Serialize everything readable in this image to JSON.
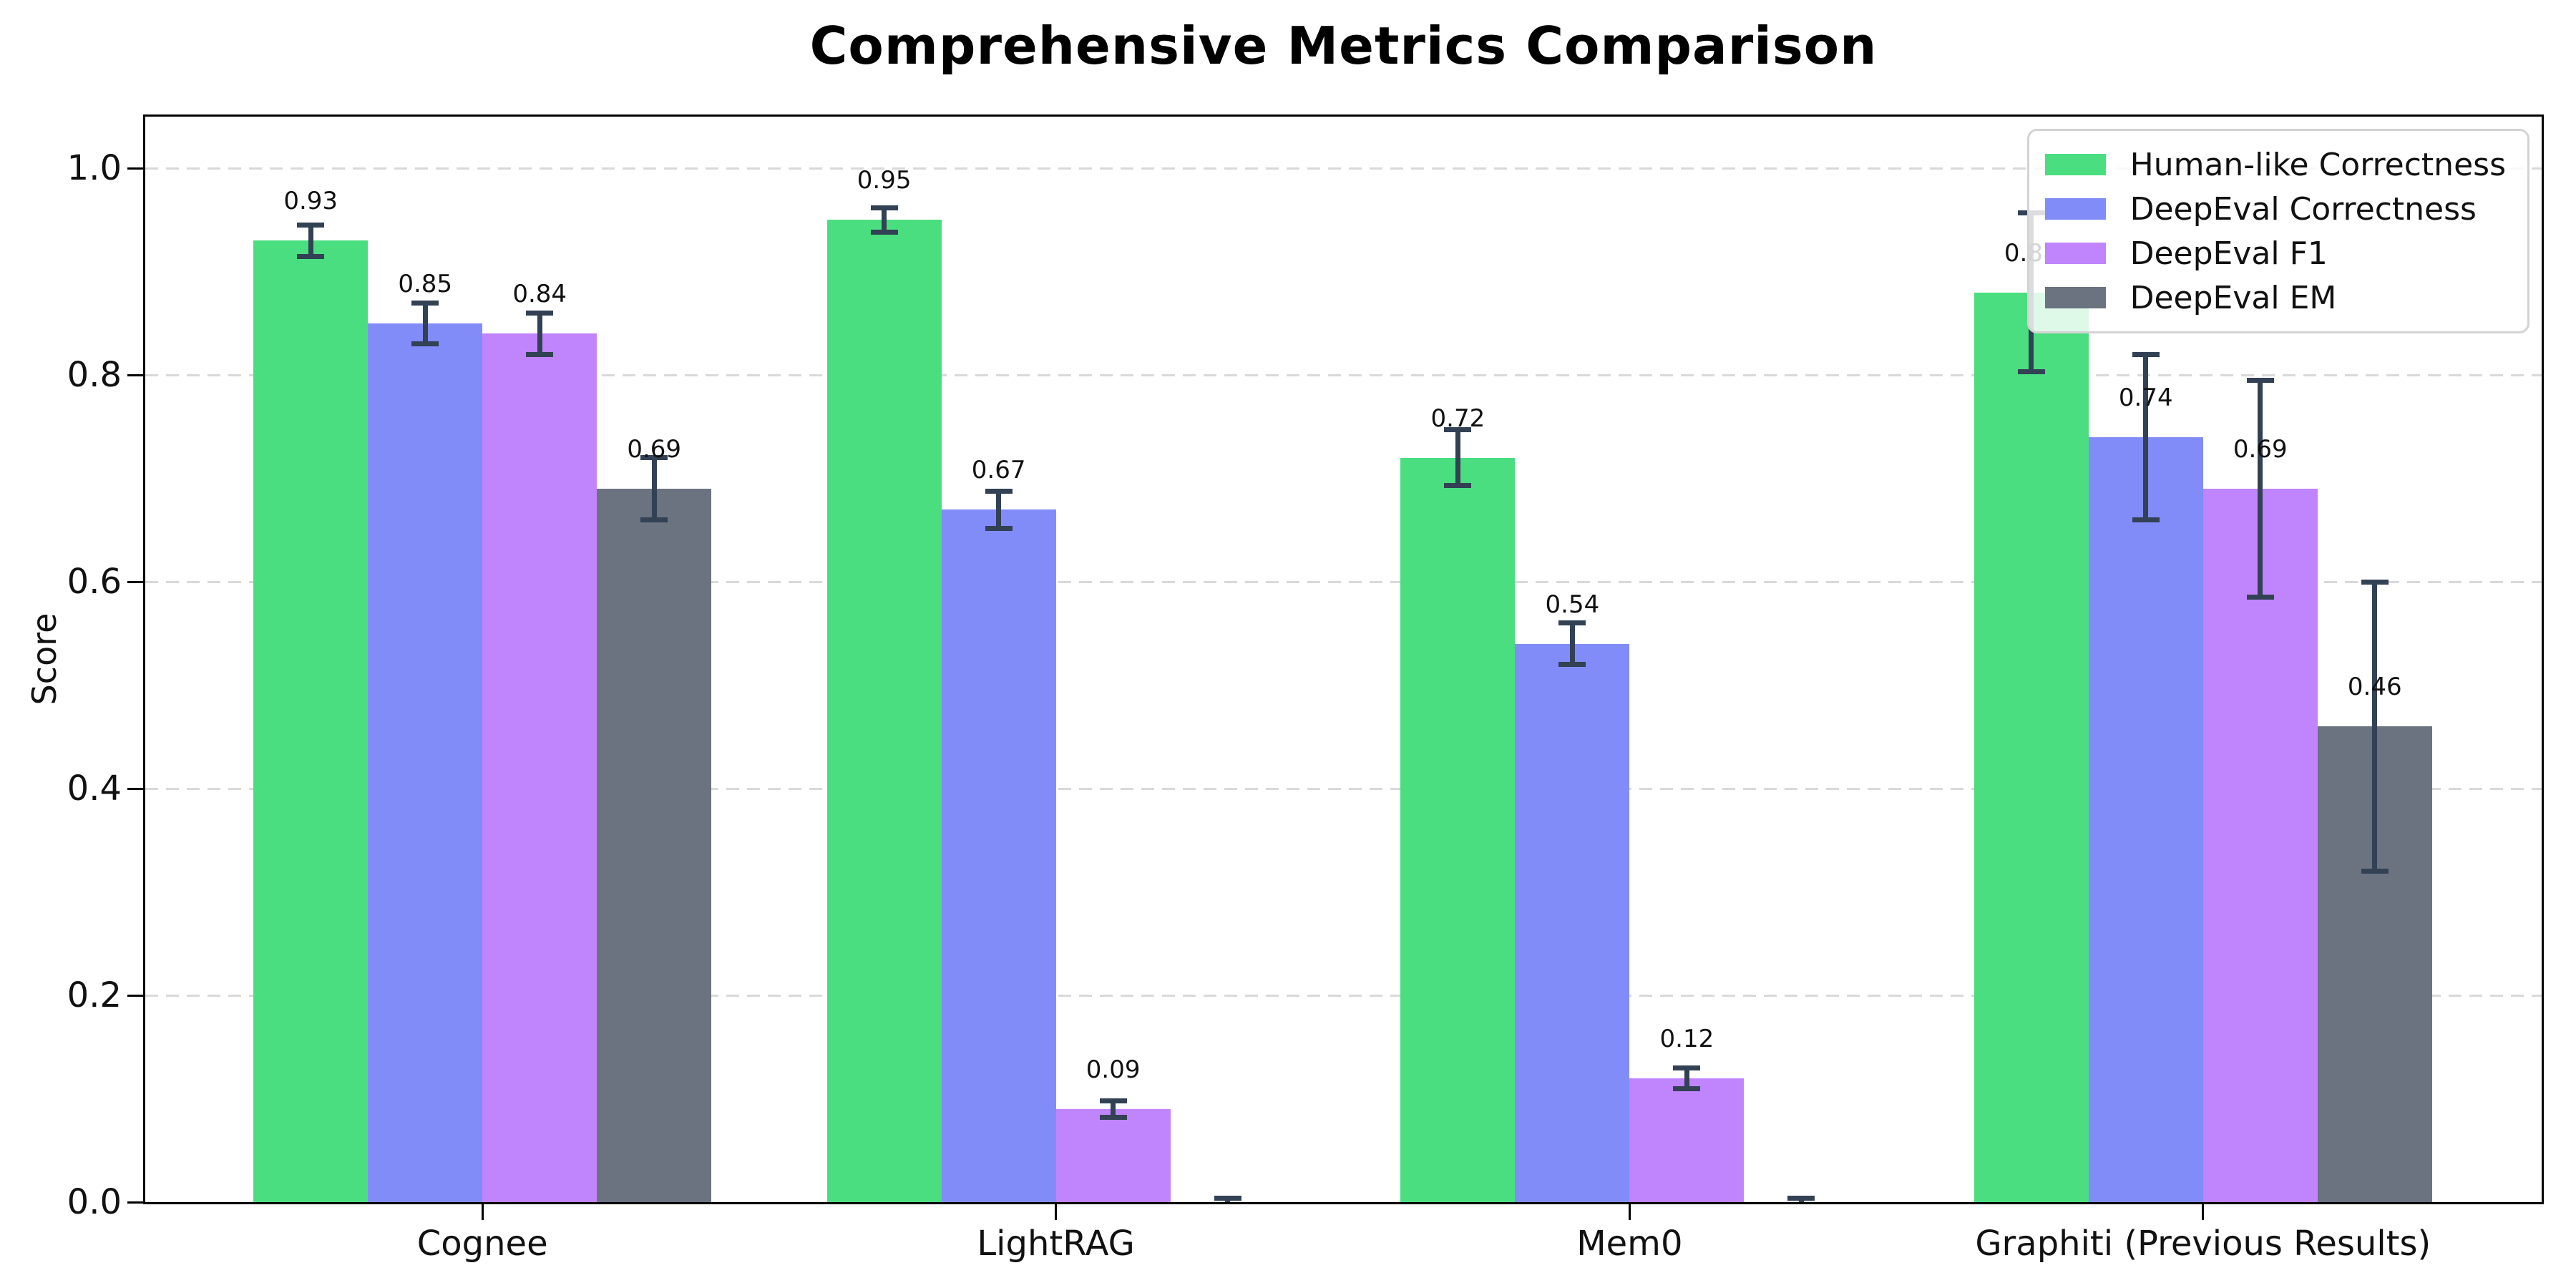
{
  "chart_data": {
    "type": "bar",
    "title": "Comprehensive Metrics Comparison",
    "xlabel": "",
    "ylabel": "Score",
    "categories": [
      "Cognee",
      "LightRAG",
      "Mem0",
      "Graphiti (Previous Results)"
    ],
    "series": [
      {
        "name": "Human-like Correctness",
        "color": "#4ade80",
        "values": [
          0.93,
          0.95,
          0.72,
          0.88
        ],
        "errors": [
          0.015,
          0.012,
          0.027,
          0.077
        ],
        "labels": [
          "0.93",
          "0.95",
          "0.72",
          "0.88"
        ]
      },
      {
        "name": "DeepEval Correctness",
        "color": "#818cf8",
        "values": [
          0.85,
          0.67,
          0.54,
          0.74
        ],
        "errors": [
          0.02,
          0.018,
          0.02,
          0.08
        ],
        "labels": [
          "0.85",
          "0.67",
          "0.54",
          "0.74"
        ]
      },
      {
        "name": "DeepEval F1",
        "color": "#c084fc",
        "values": [
          0.84,
          0.09,
          0.12,
          0.69
        ],
        "errors": [
          0.02,
          0.008,
          0.01,
          0.105
        ],
        "labels": [
          "0.84",
          "0.09",
          "0.12",
          "0.69"
        ]
      },
      {
        "name": "DeepEval EM",
        "color": "#6b7280",
        "values": [
          0.69,
          0.0,
          0.0,
          0.46
        ],
        "errors": [
          0.03,
          0.004,
          0.004,
          0.14
        ],
        "labels": [
          "0.69",
          "",
          "",
          "0.46"
        ]
      }
    ],
    "ylim": [
      0,
      1.05
    ],
    "yticks": [
      0.0,
      0.2,
      0.4,
      0.6,
      0.8,
      1.0
    ],
    "ytick_labels": [
      "0.0",
      "0.2",
      "0.4",
      "0.6",
      "0.8",
      "1.0"
    ],
    "grid": "horizontal-dashed",
    "legend_position": "upper right",
    "errorbar_color": "#334155"
  }
}
